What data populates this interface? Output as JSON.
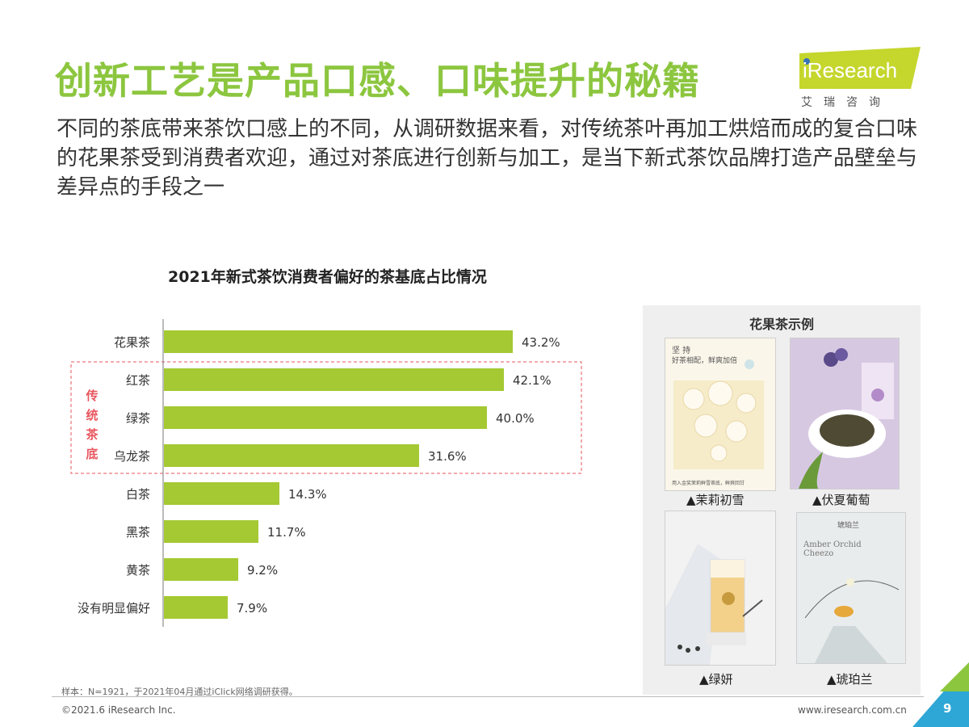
{
  "header": {
    "title": "创新工艺是产品口感、口味提升的秘籍",
    "subtitle": "不同的茶底带来茶饮口感上的不同，从调研数据来看，对传统茶叶再加工烘焙而成的复合口味的花果茶受到消费者欢迎，通过对茶底进行创新与加工，是当下新式茶饮品牌打造产品壁垒与差异点的手段之一"
  },
  "logo": {
    "wordmark": "iResearch",
    "cn": "艾瑞咨询",
    "colors": {
      "green": "#c5d62d",
      "blue": "#3a73b8"
    }
  },
  "chart_data": {
    "type": "bar",
    "orientation": "horizontal",
    "title": "2021年新式茶饮消费者偏好的茶基底占比情况",
    "categories": [
      "花果茶",
      "红茶",
      "绿茶",
      "乌龙茶",
      "白茶",
      "黑茶",
      "黄茶",
      "没有明显偏好"
    ],
    "values": [
      43.2,
      42.1,
      40.0,
      31.6,
      14.3,
      11.7,
      9.2,
      7.9
    ],
    "value_labels": [
      "43.2%",
      "42.1%",
      "40.0%",
      "31.6%",
      "14.3%",
      "11.7%",
      "9.2%",
      "7.9%"
    ],
    "unit": "%",
    "xlim": [
      0,
      50
    ],
    "grid": false,
    "bar_color": "#a4c932",
    "annotation": {
      "label": "传统茶底",
      "categories": [
        "红茶",
        "绿茶",
        "乌龙茶"
      ],
      "color": "#e8565e"
    }
  },
  "examples": {
    "title": "花果茶示例",
    "items": [
      {
        "caption": "▲茉莉初雪",
        "text_top": "坚 持",
        "text_sub": "好茶相配，鲜爽加倍",
        "text_bottom": "用入金奖茉莉鲜雪茶底，鲜爽回甘"
      },
      {
        "caption": "▲伏夏葡萄"
      },
      {
        "caption": "▲绿妍"
      },
      {
        "caption": "▲琥珀兰",
        "text_top": "琥珀兰",
        "text_en": "Amber Orchid Cheezo"
      }
    ]
  },
  "footer": {
    "note": "样本：N=1921，于2021年04月通过iClick网络调研获得。",
    "copyright": "©2021.6 iResearch Inc.",
    "website": "www.iresearch.com.cn",
    "page": "9"
  },
  "colors": {
    "title_green": "#8cc63f",
    "corner_green": "#8cc63f",
    "corner_blue": "#2ea7d6"
  }
}
